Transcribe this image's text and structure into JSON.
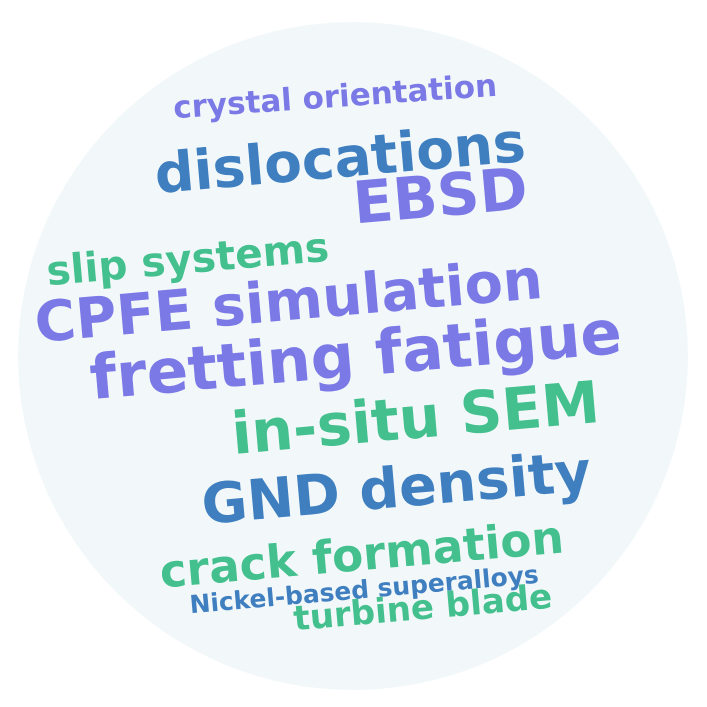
{
  "colors": {
    "background": "#ffffff",
    "circle": "#f2f8fa",
    "purple": "#7b79e6",
    "blue": "#3f7fc0",
    "green": "#43c08d"
  },
  "words": [
    {
      "text": "crystal orientation",
      "color": "#7b79e6"
    },
    {
      "text": "dislocations",
      "color": "#3f7fc0"
    },
    {
      "text": "EBSD",
      "color": "#7b79e6"
    },
    {
      "text": "slip systems",
      "color": "#43c08d"
    },
    {
      "text": "CPFE simulation",
      "color": "#7b79e6"
    },
    {
      "text": "fretting fatigue",
      "color": "#7b79e6"
    },
    {
      "text": "in-situ SEM",
      "color": "#43c08d"
    },
    {
      "text": "GND density",
      "color": "#3f7fc0"
    },
    {
      "text": "crack formation",
      "color": "#43c08d"
    },
    {
      "text": "Nickel-based superalloys",
      "color": "#3f7fc0"
    },
    {
      "text": "turbine blade",
      "color": "#43c08d"
    }
  ]
}
